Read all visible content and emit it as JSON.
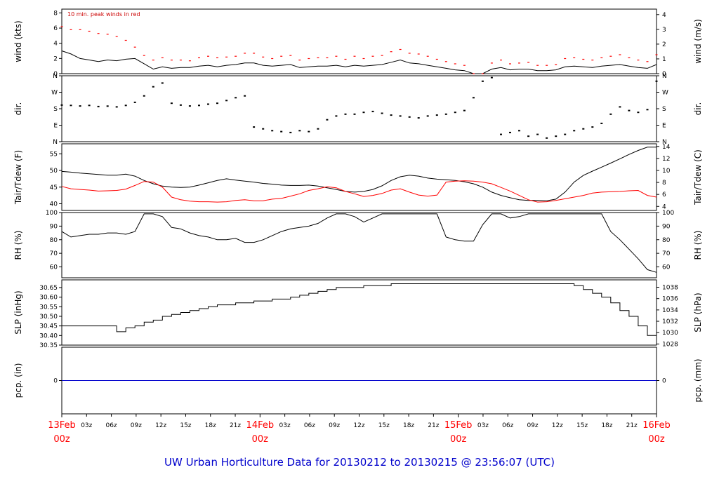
{
  "footer": "UW Urban Horticulture Data for 20130212  to  20130215 @ 23:56:07  (UTC)",
  "colors": {
    "wind": "#000000",
    "gust": "#ff0000",
    "dew": "#ff0000",
    "air": "#000000",
    "precip": "#0000cc",
    "day_label": "#ff0000",
    "footer": "#0000cc"
  },
  "x_axis": {
    "hours_ticks": [
      "03z",
      "06z",
      "09z",
      "12z",
      "15z",
      "18z",
      "21z"
    ],
    "day_labels": [
      {
        "day": "13Feb",
        "time": "00z"
      },
      {
        "day": "14Feb",
        "time": "00z"
      },
      {
        "day": "15Feb",
        "time": "00z"
      },
      {
        "day": "16Feb",
        "time": "00z"
      }
    ]
  },
  "chart_data": [
    {
      "type": "line",
      "ylabel": "wind (kts)",
      "ylabel_right": "wind (m/s)",
      "annotation": "10 min. peak winds in red",
      "ylim": [
        0,
        8.5
      ],
      "yticks": [
        0,
        2,
        4,
        6,
        8
      ],
      "yticks_right": [
        0,
        1,
        2,
        3,
        4
      ],
      "series": [
        {
          "values": [
            3.0,
            2.6,
            2.0,
            1.8,
            1.6,
            1.8,
            1.7,
            1.9,
            2.0,
            1.3,
            0.6,
            0.9,
            0.7,
            0.8,
            0.8,
            1.0,
            1.1,
            0.9,
            1.1,
            1.2,
            1.4,
            1.4,
            1.1,
            1.0,
            1.1,
            1.2,
            0.8,
            0.9,
            1.0,
            1.0,
            1.1,
            0.9,
            1.1,
            1.0,
            1.1,
            1.2,
            1.5,
            1.8,
            1.4,
            1.3,
            1.1,
            0.9,
            0.7,
            0.5,
            0.4,
            0.0,
            0.0,
            0.6,
            0.8,
            0.5,
            0.6,
            0.6,
            0.4,
            0.4,
            0.5,
            0.9,
            1.0,
            0.9,
            0.8,
            1.0,
            1.1,
            1.2,
            1.0,
            0.8,
            0.7,
            1.2
          ]
        },
        {
          "values": [
            6.2,
            5.8,
            5.8,
            5.6,
            5.3,
            5.2,
            4.9,
            4.4,
            3.5,
            2.4,
            1.8,
            2.1,
            1.8,
            1.8,
            1.7,
            2.1,
            2.3,
            2.1,
            2.2,
            2.3,
            2.7,
            2.7,
            2.2,
            2.0,
            2.3,
            2.4,
            1.8,
            2.0,
            2.1,
            2.1,
            2.3,
            1.9,
            2.3,
            2.0,
            2.3,
            2.4,
            2.9,
            3.2,
            2.7,
            2.6,
            2.3,
            1.9,
            1.6,
            1.3,
            1.1,
            0.0,
            0.0,
            1.4,
            1.8,
            1.3,
            1.4,
            1.5,
            1.1,
            1.1,
            1.2,
            2.0,
            2.1,
            1.9,
            1.8,
            2.1,
            2.3,
            2.5,
            2.1,
            1.8,
            1.6,
            2.5
          ]
        }
      ]
    },
    {
      "type": "scatter",
      "ylabel": "dir.",
      "ylabel_right": "dir.",
      "ylim": [
        0,
        360
      ],
      "ytick_labels": [
        "N",
        "E",
        "S",
        "W",
        "N"
      ],
      "values": [
        200,
        198,
        195,
        198,
        192,
        194,
        190,
        198,
        215,
        250,
        300,
        320,
        210,
        200,
        195,
        198,
        205,
        210,
        225,
        240,
        250,
        80,
        70,
        60,
        55,
        50,
        60,
        55,
        70,
        120,
        140,
        150,
        150,
        160,
        165,
        155,
        145,
        140,
        135,
        130,
        140,
        145,
        150,
        160,
        170,
        240,
        330,
        350,
        40,
        50,
        60,
        30,
        40,
        20,
        30,
        40,
        60,
        70,
        80,
        100,
        150,
        190,
        170,
        160,
        175,
        330
      ]
    },
    {
      "type": "line",
      "ylabel": "Tair/Tdew (F)",
      "ylabel_right": "Tair/Tdew (C)",
      "ylim": [
        38,
        58
      ],
      "yticks": [
        40,
        45,
        50,
        55
      ],
      "yticks_right": [
        4,
        6,
        8,
        10,
        12,
        14
      ],
      "series": [
        {
          "values": [
            49.7,
            49.5,
            49.2,
            49.0,
            48.8,
            48.6,
            48.6,
            48.9,
            48.3,
            47.0,
            46.0,
            45.3,
            45.0,
            44.9,
            45.0,
            45.6,
            46.3,
            47.0,
            47.5,
            47.1,
            46.8,
            46.5,
            46.1,
            45.9,
            45.6,
            45.5,
            45.5,
            45.6,
            45.3,
            44.8,
            44.3,
            43.7,
            43.5,
            43.7,
            44.3,
            45.4,
            47.0,
            48.1,
            48.6,
            48.3,
            47.7,
            47.4,
            47.2,
            47.0,
            46.6,
            46.0,
            45.0,
            43.5,
            42.5,
            41.8,
            41.2,
            41.0,
            41.0,
            40.9,
            41.4,
            43.5,
            46.5,
            48.5,
            49.8,
            51.0,
            52.2,
            53.5,
            54.8,
            56.0,
            57.0,
            57.0
          ]
        },
        {
          "values": [
            45.2,
            44.5,
            44.3,
            44.1,
            43.8,
            43.9,
            44.0,
            44.4,
            45.5,
            46.7,
            46.5,
            45.0,
            42.0,
            41.2,
            40.8,
            40.6,
            40.6,
            40.5,
            40.6,
            41.0,
            41.2,
            40.9,
            40.9,
            41.4,
            41.6,
            42.3,
            43.0,
            44.0,
            44.5,
            45.1,
            44.8,
            43.7,
            43.0,
            42.2,
            42.5,
            43.1,
            44.1,
            44.5,
            43.5,
            42.6,
            42.3,
            42.6,
            46.5,
            46.8,
            46.9,
            46.8,
            46.5,
            46.0,
            44.9,
            43.8,
            42.5,
            41.2,
            40.5,
            40.6,
            41.0,
            41.5,
            42.0,
            42.5,
            43.2,
            43.5,
            43.6,
            43.7,
            43.9,
            44.0,
            42.5,
            42.0
          ]
        }
      ]
    },
    {
      "type": "line",
      "ylabel": "RH (%)",
      "ylabel_right": "RH (%)",
      "ylim": [
        52,
        100
      ],
      "yticks": [
        60,
        70,
        80,
        90,
        100
      ],
      "values": [
        86,
        82,
        83,
        84,
        84,
        85,
        85,
        84,
        86,
        99,
        99,
        97,
        89,
        88,
        85,
        83,
        82,
        80,
        80,
        81,
        78,
        78,
        80,
        83,
        86,
        88,
        89,
        90,
        92,
        96,
        99,
        99,
        97,
        93,
        96,
        99,
        99,
        99,
        99,
        99,
        99,
        99,
        82,
        80,
        79,
        79,
        91,
        99,
        99,
        96,
        97,
        99,
        99,
        99,
        99,
        99,
        99,
        99,
        99,
        99,
        86,
        80,
        73,
        66,
        58,
        56
      ]
    },
    {
      "type": "line",
      "ylabel": "SLP (inHg)",
      "ylabel_right": "SLP (hPa)",
      "ylim": [
        30.35,
        30.69
      ],
      "yticks": [
        30.35,
        30.4,
        30.45,
        30.5,
        30.55,
        30.6,
        30.65
      ],
      "yticks_right": [
        1028,
        1030,
        1032,
        1034,
        1036,
        1038
      ],
      "values": [
        30.45,
        30.45,
        30.45,
        30.45,
        30.45,
        30.45,
        30.42,
        30.44,
        30.45,
        30.47,
        30.48,
        30.5,
        30.51,
        30.52,
        30.53,
        30.54,
        30.55,
        30.56,
        30.56,
        30.57,
        30.57,
        30.58,
        30.58,
        30.59,
        30.59,
        30.6,
        30.61,
        30.62,
        30.63,
        30.64,
        30.65,
        30.65,
        30.65,
        30.66,
        30.66,
        30.66,
        30.67,
        30.67,
        30.67,
        30.67,
        30.67,
        30.67,
        30.67,
        30.67,
        30.67,
        30.67,
        30.67,
        30.67,
        30.67,
        30.67,
        30.67,
        30.67,
        30.67,
        30.67,
        30.67,
        30.67,
        30.66,
        30.64,
        30.62,
        30.6,
        30.57,
        30.53,
        30.5,
        30.45,
        30.4,
        30.38
      ]
    },
    {
      "type": "line",
      "ylabel": "pcp. (in)",
      "ylabel_right": "pcp. (mm)",
      "ylim": [
        -1,
        1
      ],
      "yticks": [
        0
      ],
      "yticks_right": [
        0
      ],
      "values": [
        0,
        0
      ]
    }
  ]
}
